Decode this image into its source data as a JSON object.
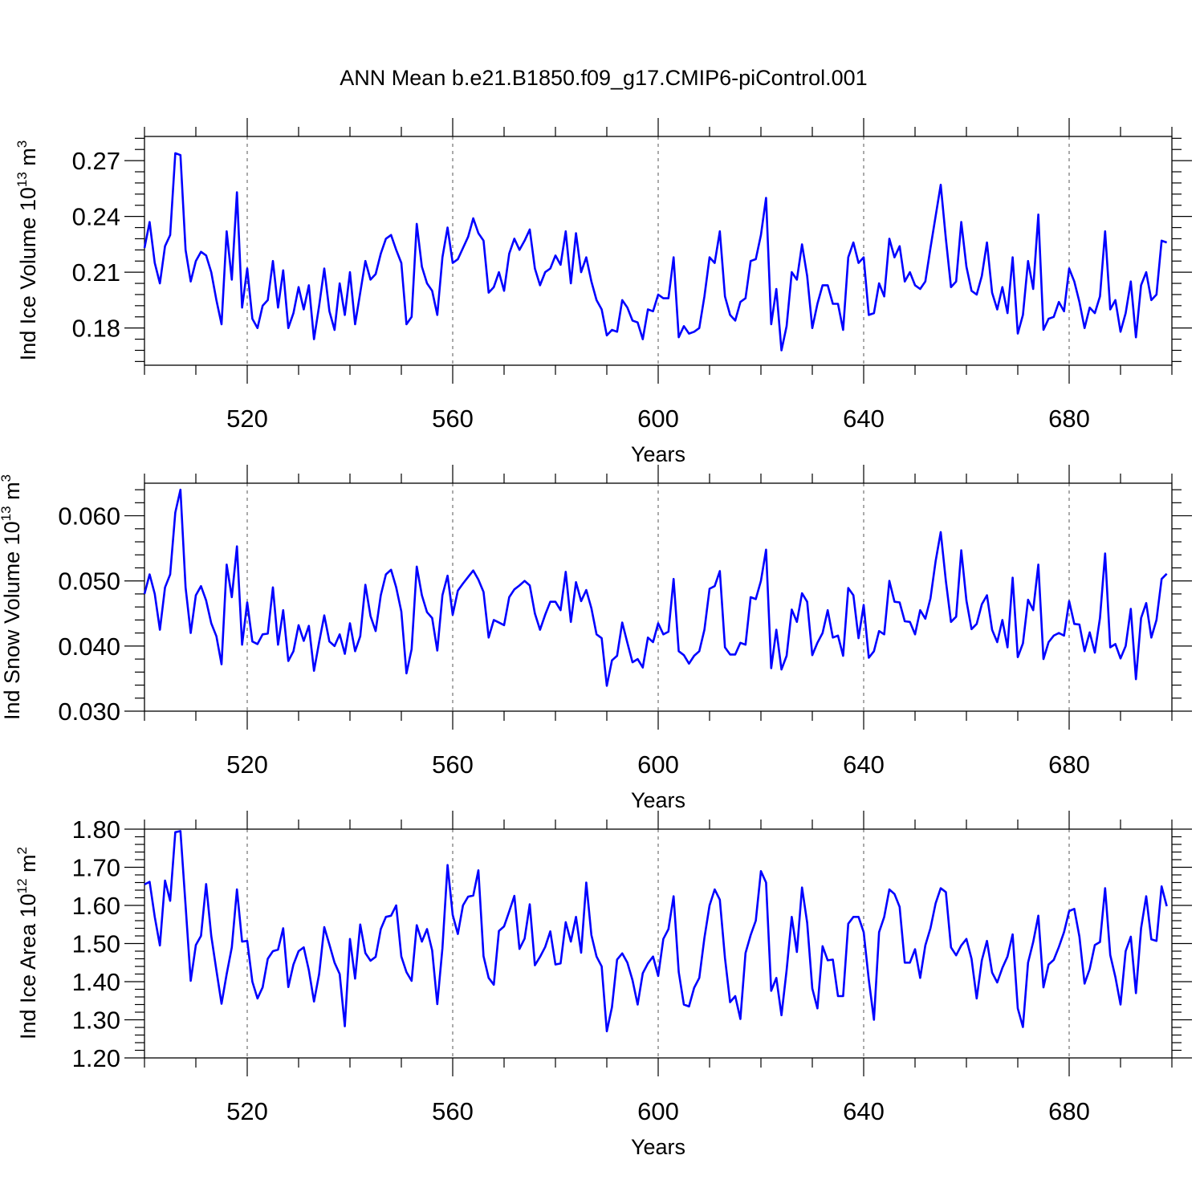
{
  "figure": {
    "title": "ANN Mean b.e21.B1850.f09_g17.CMIP6-piControl.001"
  },
  "chart_data": [
    {
      "type": "line",
      "xlabel": "Years",
      "ylabel": "Ind Ice Volume 10",
      "ylabel_exp": "13",
      "ylabel_unit": " m",
      "ylabel_unit_exp": "3",
      "xlim": [
        500,
        700
      ],
      "ylim": [
        0.16,
        0.283
      ],
      "x_ticks": [
        520,
        560,
        600,
        640,
        680
      ],
      "y_ticks": [
        0.18,
        0.21,
        0.24,
        0.27
      ],
      "y_tick_labels": [
        "0.18",
        "0.21",
        "0.24",
        "0.27"
      ],
      "grid": "dashed vertical at major x ticks",
      "color": "#0000ff",
      "x_start": 500,
      "values": [
        0.223,
        0.237,
        0.215,
        0.204,
        0.224,
        0.23,
        0.274,
        0.273,
        0.222,
        0.205,
        0.216,
        0.221,
        0.219,
        0.21,
        0.195,
        0.182,
        0.232,
        0.206,
        0.253,
        0.191,
        0.212,
        0.185,
        0.18,
        0.192,
        0.195,
        0.216,
        0.191,
        0.211,
        0.18,
        0.188,
        0.202,
        0.19,
        0.203,
        0.174,
        0.192,
        0.212,
        0.189,
        0.179,
        0.204,
        0.187,
        0.21,
        0.182,
        0.199,
        0.216,
        0.206,
        0.209,
        0.22,
        0.228,
        0.23,
        0.222,
        0.215,
        0.182,
        0.186,
        0.236,
        0.213,
        0.204,
        0.2,
        0.187,
        0.218,
        0.234,
        0.215,
        0.217,
        0.223,
        0.229,
        0.239,
        0.231,
        0.227,
        0.199,
        0.202,
        0.21,
        0.2,
        0.22,
        0.228,
        0.222,
        0.227,
        0.233,
        0.212,
        0.203,
        0.21,
        0.212,
        0.219,
        0.214,
        0.232,
        0.204,
        0.231,
        0.21,
        0.218,
        0.205,
        0.195,
        0.19,
        0.176,
        0.179,
        0.178,
        0.195,
        0.191,
        0.184,
        0.183,
        0.174,
        0.19,
        0.189,
        0.198,
        0.196,
        0.196,
        0.218,
        0.175,
        0.181,
        0.177,
        0.178,
        0.18,
        0.197,
        0.218,
        0.215,
        0.232,
        0.197,
        0.187,
        0.184,
        0.194,
        0.196,
        0.216,
        0.217,
        0.23,
        0.25,
        0.182,
        0.201,
        0.168,
        0.181,
        0.21,
        0.206,
        0.225,
        0.208,
        0.18,
        0.193,
        0.203,
        0.203,
        0.193,
        0.193,
        0.179,
        0.218,
        0.226,
        0.215,
        0.218,
        0.187,
        0.188,
        0.204,
        0.197,
        0.228,
        0.218,
        0.224,
        0.205,
        0.21,
        0.203,
        0.201,
        0.205,
        0.223,
        0.24,
        0.257,
        0.228,
        0.202,
        0.205,
        0.237,
        0.213,
        0.2,
        0.198,
        0.208,
        0.226,
        0.199,
        0.19,
        0.202,
        0.188,
        0.218,
        0.177,
        0.187,
        0.216,
        0.201,
        0.241,
        0.179,
        0.185,
        0.186,
        0.194,
        0.189,
        0.212,
        0.205,
        0.194,
        0.18,
        0.191,
        0.188,
        0.197,
        0.232,
        0.19,
        0.195,
        0.178,
        0.188,
        0.205,
        0.175,
        0.203,
        0.21,
        0.195,
        0.198,
        0.227,
        0.226
      ]
    },
    {
      "type": "line",
      "xlabel": "Years",
      "ylabel": "Ind Snow Volume 10",
      "ylabel_exp": "13",
      "ylabel_unit": " m",
      "ylabel_unit_exp": "3",
      "xlim": [
        500,
        700
      ],
      "ylim": [
        0.03,
        0.065
      ],
      "x_ticks": [
        520,
        560,
        600,
        640,
        680
      ],
      "y_ticks": [
        0.03,
        0.04,
        0.05,
        0.06
      ],
      "y_tick_labels": [
        "0.030",
        "0.040",
        "0.050",
        "0.060"
      ],
      "grid": "dashed vertical at major x ticks",
      "color": "#0000ff",
      "x_start": 500,
      "values": [
        0.048,
        0.051,
        0.048,
        0.0425,
        0.049,
        0.051,
        0.0605,
        0.064,
        0.049,
        0.042,
        0.0478,
        0.0492,
        0.047,
        0.0435,
        0.0415,
        0.0372,
        0.0525,
        0.0475,
        0.0553,
        0.0402,
        0.0467,
        0.0407,
        0.0403,
        0.0418,
        0.0419,
        0.049,
        0.0402,
        0.0455,
        0.0377,
        0.0392,
        0.0432,
        0.0408,
        0.0431,
        0.0362,
        0.0406,
        0.0447,
        0.0407,
        0.04,
        0.0418,
        0.0388,
        0.0435,
        0.0392,
        0.0415,
        0.0494,
        0.0446,
        0.0423,
        0.0478,
        0.051,
        0.0517,
        0.049,
        0.0453,
        0.0358,
        0.0395,
        0.0522,
        0.0478,
        0.0452,
        0.0443,
        0.0393,
        0.0478,
        0.0508,
        0.0448,
        0.0485,
        0.0496,
        0.0506,
        0.0516,
        0.0502,
        0.0483,
        0.0413,
        0.044,
        0.0436,
        0.0432,
        0.0475,
        0.0487,
        0.0493,
        0.05,
        0.0493,
        0.045,
        0.0425,
        0.0448,
        0.0468,
        0.0468,
        0.0455,
        0.0514,
        0.0437,
        0.0498,
        0.0469,
        0.0486,
        0.0458,
        0.0418,
        0.0412,
        0.0339,
        0.0378,
        0.0385,
        0.0436,
        0.0405,
        0.0375,
        0.038,
        0.0367,
        0.0413,
        0.0406,
        0.0435,
        0.0418,
        0.0422,
        0.0503,
        0.0392,
        0.0386,
        0.0373,
        0.0385,
        0.0392,
        0.0425,
        0.0488,
        0.0492,
        0.0515,
        0.0398,
        0.0387,
        0.0387,
        0.0405,
        0.0402,
        0.0475,
        0.0472,
        0.05,
        0.0548,
        0.0366,
        0.0425,
        0.0364,
        0.0385,
        0.0456,
        0.0437,
        0.0481,
        0.0468,
        0.0386,
        0.0405,
        0.042,
        0.0455,
        0.0413,
        0.0416,
        0.0385,
        0.0489,
        0.0478,
        0.0412,
        0.0463,
        0.0382,
        0.0392,
        0.0423,
        0.0418,
        0.05,
        0.0468,
        0.0467,
        0.0438,
        0.0437,
        0.0418,
        0.0455,
        0.0442,
        0.0473,
        0.053,
        0.0575,
        0.05,
        0.0437,
        0.0445,
        0.0547,
        0.047,
        0.0426,
        0.0434,
        0.0464,
        0.0478,
        0.0425,
        0.0406,
        0.044,
        0.0398,
        0.0505,
        0.0383,
        0.0404,
        0.0471,
        0.0455,
        0.0525,
        0.038,
        0.0406,
        0.0416,
        0.042,
        0.0416,
        0.0469,
        0.0434,
        0.0433,
        0.0392,
        0.0421,
        0.039,
        0.0443,
        0.0542,
        0.0398,
        0.0403,
        0.0381,
        0.04,
        0.0457,
        0.0349,
        0.0443,
        0.0466,
        0.0413,
        0.044,
        0.0503,
        0.0511
      ]
    },
    {
      "type": "line",
      "xlabel": "Years",
      "ylabel": "Ind Ice Area 10",
      "ylabel_exp": "12",
      "ylabel_unit": " m",
      "ylabel_unit_exp": "2",
      "xlim": [
        500,
        700
      ],
      "ylim": [
        1.2,
        1.8
      ],
      "x_ticks": [
        520,
        560,
        600,
        640,
        680
      ],
      "y_ticks": [
        1.2,
        1.3,
        1.4,
        1.5,
        1.6,
        1.7,
        1.8
      ],
      "y_tick_labels": [
        "1.20",
        "1.30",
        "1.40",
        "1.50",
        "1.60",
        "1.70",
        "1.80"
      ],
      "grid": "dashed vertical at major x ticks",
      "color": "#0000ff",
      "x_start": 500,
      "values": [
        1.655,
        1.662,
        1.57,
        1.495,
        1.665,
        1.612,
        1.792,
        1.795,
        1.6,
        1.402,
        1.496,
        1.52,
        1.656,
        1.52,
        1.43,
        1.342,
        1.42,
        1.49,
        1.642,
        1.505,
        1.507,
        1.4,
        1.356,
        1.385,
        1.46,
        1.48,
        1.484,
        1.54,
        1.386,
        1.445,
        1.48,
        1.49,
        1.43,
        1.348,
        1.42,
        1.543,
        1.497,
        1.45,
        1.42,
        1.283,
        1.512,
        1.408,
        1.55,
        1.475,
        1.455,
        1.465,
        1.538,
        1.57,
        1.573,
        1.6,
        1.466,
        1.425,
        1.402,
        1.548,
        1.505,
        1.538,
        1.482,
        1.341,
        1.488,
        1.706,
        1.575,
        1.525,
        1.6,
        1.623,
        1.626,
        1.692,
        1.467,
        1.41,
        1.392,
        1.533,
        1.545,
        1.584,
        1.625,
        1.486,
        1.513,
        1.603,
        1.443,
        1.465,
        1.491,
        1.532,
        1.445,
        1.448,
        1.556,
        1.505,
        1.57,
        1.476,
        1.66,
        1.522,
        1.466,
        1.44,
        1.27,
        1.333,
        1.458,
        1.474,
        1.45,
        1.404,
        1.34,
        1.422,
        1.448,
        1.466,
        1.415,
        1.512,
        1.538,
        1.624,
        1.425,
        1.34,
        1.335,
        1.384,
        1.41,
        1.515,
        1.6,
        1.642,
        1.615,
        1.462,
        1.346,
        1.362,
        1.302,
        1.475,
        1.522,
        1.56,
        1.69,
        1.66,
        1.376,
        1.41,
        1.312,
        1.43,
        1.57,
        1.478,
        1.647,
        1.555,
        1.382,
        1.33,
        1.493,
        1.456,
        1.458,
        1.362,
        1.362,
        1.552,
        1.57,
        1.57,
        1.53,
        1.405,
        1.3,
        1.53,
        1.57,
        1.642,
        1.63,
        1.596,
        1.45,
        1.45,
        1.485,
        1.41,
        1.495,
        1.54,
        1.605,
        1.645,
        1.635,
        1.49,
        1.469,
        1.495,
        1.512,
        1.46,
        1.356,
        1.456,
        1.507,
        1.424,
        1.398,
        1.436,
        1.466,
        1.524,
        1.33,
        1.281,
        1.45,
        1.504,
        1.573,
        1.385,
        1.445,
        1.457,
        1.491,
        1.53,
        1.585,
        1.591,
        1.518,
        1.395,
        1.433,
        1.496,
        1.504,
        1.645,
        1.47,
        1.412,
        1.34,
        1.48,
        1.518,
        1.37,
        1.54,
        1.624,
        1.511,
        1.507,
        1.65,
        1.598
      ]
    }
  ]
}
